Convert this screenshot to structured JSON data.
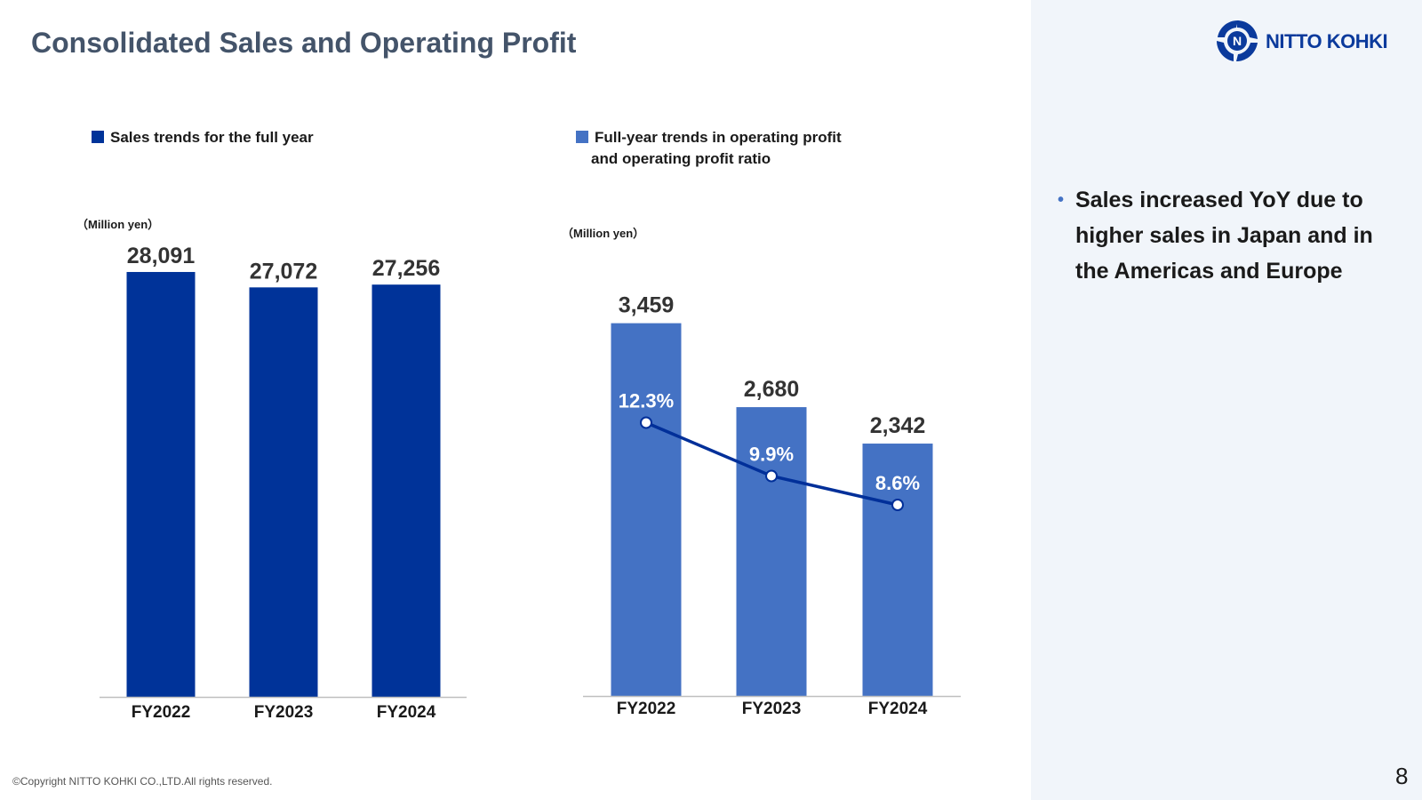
{
  "slide": {
    "title": "Consolidated Sales and Operating Profit",
    "copyright": "©Copyright NITTO KOHKI CO.,LTD.All rights reserved.",
    "page_number": "8",
    "logo_text": "NITTO KOHKI"
  },
  "sales_panel": {
    "legend": "Sales trends for the full year",
    "unit": "（Million yen）"
  },
  "profit_panel": {
    "legend_line1": "Full-year trends in operating profit",
    "legend_line2": "and operating profit ratio",
    "unit": "（Million yen）"
  },
  "summary": {
    "bullet": "Sales increased YoY due to higher sales in Japan and in the Americas and Europe"
  },
  "colors": {
    "sales_bar": "#003399",
    "profit_bar": "#4472c4",
    "ratio_line": "#002f99",
    "title": "#44546a",
    "sidebar_bg": "#f1f5fa",
    "logo": "#0b3a9c"
  },
  "chart_data": [
    {
      "type": "bar",
      "title": "Sales trends for the full year",
      "ylabel": "Million yen",
      "categories": [
        "FY2022",
        "FY2023",
        "FY2024"
      ],
      "values": [
        28091,
        27072,
        27256
      ],
      "value_labels": [
        "28,091",
        "27,072",
        "27,256"
      ],
      "ylim": [
        0,
        29500
      ]
    },
    {
      "type": "bar+line",
      "title": "Full-year trends in operating profit and operating profit ratio",
      "ylabel": "Million yen",
      "categories": [
        "FY2022",
        "FY2023",
        "FY2024"
      ],
      "series": [
        {
          "name": "Operating profit",
          "type": "bar",
          "values": [
            3459,
            2680,
            2342
          ],
          "labels": [
            "3,459",
            "2,680",
            "2,342"
          ]
        },
        {
          "name": "Operating profit ratio",
          "type": "line",
          "unit": "%",
          "values": [
            12.3,
            9.9,
            8.6
          ],
          "labels": [
            "12.3%",
            "9.9%",
            "8.6%"
          ]
        }
      ],
      "ylim": [
        0,
        4000
      ],
      "ratio_ylim": [
        0,
        19.4
      ]
    }
  ]
}
